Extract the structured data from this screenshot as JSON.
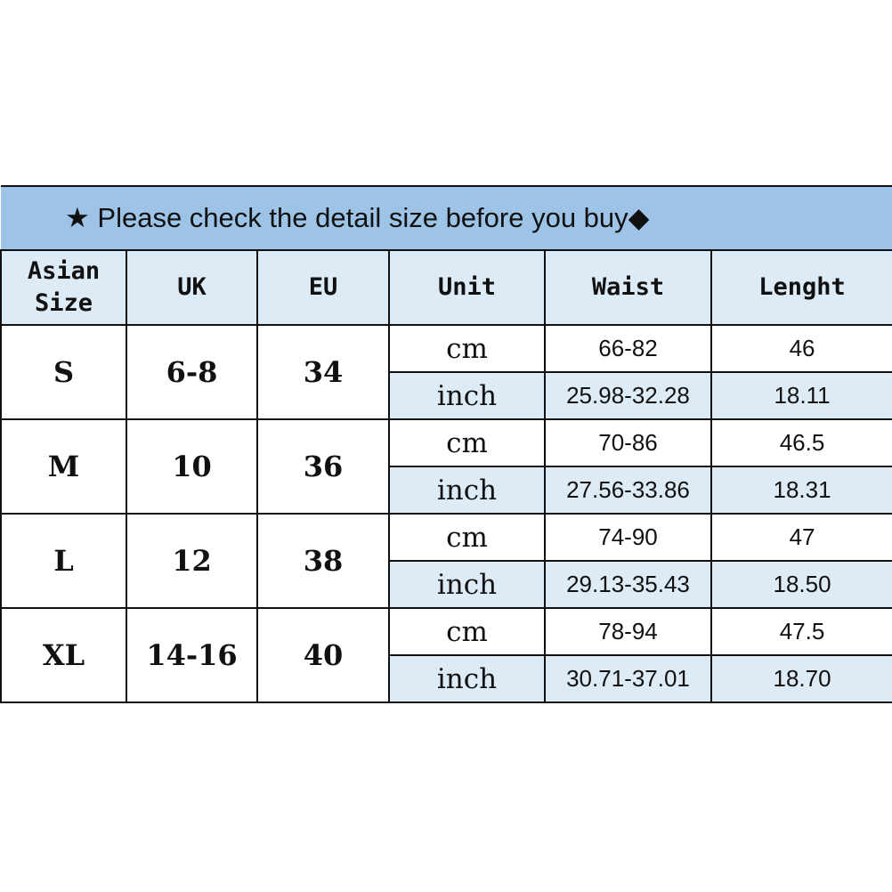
{
  "title": "★ Please check the detail size before you buy◆",
  "headers": [
    "Asian Size",
    "UK",
    "EU",
    "Unit",
    "Waist",
    "Lenght"
  ],
  "rows": [
    {
      "asian": "S",
      "uk": "6-8",
      "eu": "34",
      "cm": {
        "unit": "cm",
        "waist": "66-82",
        "length": "46"
      },
      "inch": {
        "unit": "inch",
        "waist": "25.98-32.28",
        "length": "18.11"
      }
    },
    {
      "asian": "M",
      "uk": "10",
      "eu": "36",
      "cm": {
        "unit": "cm",
        "waist": "70-86",
        "length": "46.5"
      },
      "inch": {
        "unit": "inch",
        "waist": "27.56-33.86",
        "length": "18.31"
      }
    },
    {
      "asian": "L",
      "uk": "12",
      "eu": "38",
      "cm": {
        "unit": "cm",
        "waist": "74-90",
        "length": "47"
      },
      "inch": {
        "unit": "inch",
        "waist": "29.13-35.43",
        "length": "18.50"
      }
    },
    {
      "asian": "XL",
      "uk": "14-16",
      "eu": "40",
      "cm": {
        "unit": "cm",
        "waist": "78-94",
        "length": "47.5"
      },
      "inch": {
        "unit": "inch",
        "waist": "30.71-37.01",
        "length": "18.70"
      }
    }
  ],
  "colors": {
    "title_bg": "#9DC3E6",
    "header_bg": "#DDEBF7"
  }
}
